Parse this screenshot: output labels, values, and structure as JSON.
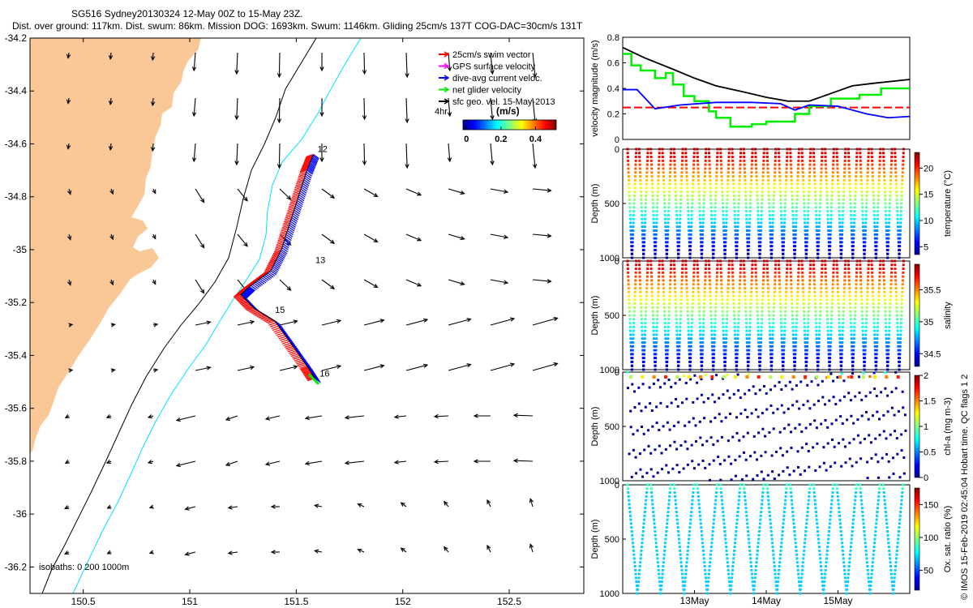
{
  "header": {
    "title1": "SG516 Sydney20130324 12-May 00Z to 15-May 23Z.",
    "title2": "Dist. over ground: 117km. Dist. swum: 86km. Mission DOG: 1693km. Swum: 1146km. Gliding 25cm/s 137T COG-DAC=30cm/s 131T"
  },
  "map": {
    "x_ticks": [
      "150.5",
      "151",
      "151.5",
      "152",
      "152.5"
    ],
    "x_tick_values": [
      150.5,
      151,
      151.5,
      152,
      152.5
    ],
    "y_ticks": [
      "-34.2",
      "-34.4",
      "-34.6",
      "-34.8",
      "-35",
      "-35.2",
      "-35.4",
      "-35.6",
      "-35.8",
      "-36",
      "-36.2"
    ],
    "y_tick_values": [
      -34.2,
      -34.4,
      -34.6,
      -34.8,
      -35,
      -35.2,
      -35.4,
      -35.6,
      -35.8,
      -36,
      -36.2
    ],
    "xlim": [
      150.25,
      152.85
    ],
    "ylim": [
      -36.3,
      -34.2
    ],
    "land_color": "#fac796",
    "isobath_note": "isobaths: 0   200  1000m",
    "day_labels": [
      {
        "text": "12",
        "lon": 151.6,
        "lat": -34.63
      },
      {
        "text": "13",
        "lon": 151.59,
        "lat": -35.05
      },
      {
        "text": "15",
        "lon": 151.4,
        "lat": -35.24
      },
      {
        "text": "16",
        "lon": 151.61,
        "lat": -35.48
      }
    ],
    "legend": [
      {
        "label": "25cm/s swim vector",
        "color": "#ff0000"
      },
      {
        "label": "GPS surface velocity",
        "color": "#ff00ff"
      },
      {
        "label": "dive-avg current veloc.",
        "color": "#0000ff"
      },
      {
        "label": "net glider velocity",
        "color": "#00ee00"
      },
      {
        "label": "sfc geo. vel. 15-May-2013",
        "color": "#000000"
      }
    ],
    "scale_label": "4hr",
    "colorbar": {
      "label": "(m/s)",
      "ticks": [
        "0",
        "0.2",
        "0.4"
      ],
      "tick_values": [
        0,
        0.2,
        0.4
      ],
      "range": [
        -0.02,
        0.52
      ]
    },
    "track": [
      [
        151.58,
        -34.64
      ],
      [
        151.55,
        -34.7
      ],
      [
        151.51,
        -34.8
      ],
      [
        151.47,
        -34.9
      ],
      [
        151.43,
        -35.0
      ],
      [
        151.38,
        -35.08
      ],
      [
        151.28,
        -35.14
      ],
      [
        151.24,
        -35.17
      ],
      [
        151.3,
        -35.22
      ],
      [
        151.4,
        -35.27
      ],
      [
        151.48,
        -35.36
      ],
      [
        151.55,
        -35.44
      ],
      [
        151.59,
        -35.49
      ]
    ]
  },
  "velocity_plot": {
    "ylabel": "velocity magnitude (m/s)",
    "y_ticks": [
      "0",
      "0.2",
      "0.4",
      "0.6",
      "0.8"
    ],
    "y_tick_values": [
      0,
      0.2,
      0.4,
      0.6,
      0.8
    ],
    "ylim": [
      0,
      0.8
    ],
    "xlim": [
      12.0,
      16.0
    ],
    "black": [
      [
        12.0,
        0.72
      ],
      [
        12.3,
        0.64
      ],
      [
        12.7,
        0.55
      ],
      [
        13.0,
        0.48
      ],
      [
        13.3,
        0.42
      ],
      [
        13.7,
        0.37
      ],
      [
        14.0,
        0.33
      ],
      [
        14.3,
        0.3
      ],
      [
        14.6,
        0.3
      ],
      [
        14.9,
        0.36
      ],
      [
        15.2,
        0.42
      ],
      [
        15.5,
        0.44
      ],
      [
        16.0,
        0.47
      ]
    ],
    "blue": [
      [
        12.0,
        0.39
      ],
      [
        12.2,
        0.39
      ],
      [
        12.45,
        0.24
      ],
      [
        12.8,
        0.27
      ],
      [
        13.3,
        0.29
      ],
      [
        13.8,
        0.29
      ],
      [
        14.2,
        0.28
      ],
      [
        14.4,
        0.23
      ],
      [
        14.6,
        0.27
      ],
      [
        15.0,
        0.26
      ],
      [
        15.4,
        0.2
      ],
      [
        15.7,
        0.17
      ],
      [
        16.0,
        0.18
      ]
    ],
    "red_level": 0.25,
    "green": [
      [
        12.0,
        0.67
      ],
      [
        12.12,
        0.67
      ],
      [
        12.12,
        0.58
      ],
      [
        12.25,
        0.58
      ],
      [
        12.25,
        0.54
      ],
      [
        12.45,
        0.54
      ],
      [
        12.45,
        0.48
      ],
      [
        12.6,
        0.48
      ],
      [
        12.6,
        0.52
      ],
      [
        12.7,
        0.52
      ],
      [
        12.7,
        0.43
      ],
      [
        12.85,
        0.43
      ],
      [
        12.85,
        0.34
      ],
      [
        13.0,
        0.34
      ],
      [
        13.0,
        0.3
      ],
      [
        13.2,
        0.3
      ],
      [
        13.2,
        0.22
      ],
      [
        13.3,
        0.22
      ],
      [
        13.3,
        0.17
      ],
      [
        13.5,
        0.17
      ],
      [
        13.5,
        0.1
      ],
      [
        13.8,
        0.1
      ],
      [
        13.8,
        0.12
      ],
      [
        14.0,
        0.12
      ],
      [
        14.0,
        0.14
      ],
      [
        14.4,
        0.14
      ],
      [
        14.4,
        0.2
      ],
      [
        14.6,
        0.2
      ],
      [
        14.6,
        0.26
      ],
      [
        14.9,
        0.26
      ],
      [
        14.9,
        0.32
      ],
      [
        15.3,
        0.32
      ],
      [
        15.3,
        0.35
      ],
      [
        15.6,
        0.35
      ],
      [
        15.6,
        0.4
      ],
      [
        16.0,
        0.4
      ]
    ]
  },
  "profiles": [
    {
      "name": "temperature",
      "ylabel": "Depth (m)",
      "cblabel": "temperature (°C)",
      "cb_ticks": [
        "5",
        "10",
        "15",
        "20"
      ],
      "cb_tick_values": [
        5,
        10,
        15,
        20
      ],
      "cb_range": [
        3.5,
        23
      ],
      "y_ticks": [
        "0",
        "500",
        "1000"
      ],
      "y_tick_values": [
        0,
        500,
        1000
      ],
      "dives": 24,
      "kind": "temp"
    },
    {
      "name": "salinity",
      "ylabel": "Depth (m)",
      "cblabel": "salinity",
      "cb_ticks": [
        "34.5",
        "35",
        "35.5"
      ],
      "cb_tick_values": [
        34.5,
        35,
        35.5
      ],
      "cb_range": [
        34.3,
        35.9
      ],
      "y_ticks": [
        "0",
        "500",
        "1000"
      ],
      "y_tick_values": [
        0,
        500,
        1000
      ],
      "dives": 24,
      "kind": "sal"
    },
    {
      "name": "chla",
      "ylabel": "Depth (m)",
      "cblabel": "chl-a (mg m-3)",
      "cb_ticks": [
        "0",
        "0.5",
        "1",
        "1.5",
        "2"
      ],
      "cb_tick_values": [
        0,
        0.5,
        1,
        1.5,
        2
      ],
      "cb_range": [
        0,
        2
      ],
      "y_ticks": [
        "0",
        "500",
        "1000"
      ],
      "y_tick_values": [
        0,
        500,
        1000
      ],
      "dives": 24,
      "kind": "chl"
    },
    {
      "name": "oxygen",
      "ylabel": "Depth (m)",
      "cblabel": "Ox. sat. ratio (%)",
      "cb_ticks": [
        "50",
        "100",
        "150"
      ],
      "cb_tick_values": [
        50,
        100,
        150
      ],
      "cb_range": [
        20,
        175
      ],
      "y_ticks": [
        "0",
        "500",
        "1000"
      ],
      "y_tick_values": [
        0,
        500,
        1000
      ],
      "dives": 12,
      "kind": "ox"
    }
  ],
  "time_axis": {
    "labels": [
      "13May",
      "14May",
      "15May"
    ],
    "values": [
      13,
      14,
      15
    ]
  },
  "side_note": "© IMOS 15-Feb-2019 02:45:04 Hobart time. QC flags 1  2"
}
